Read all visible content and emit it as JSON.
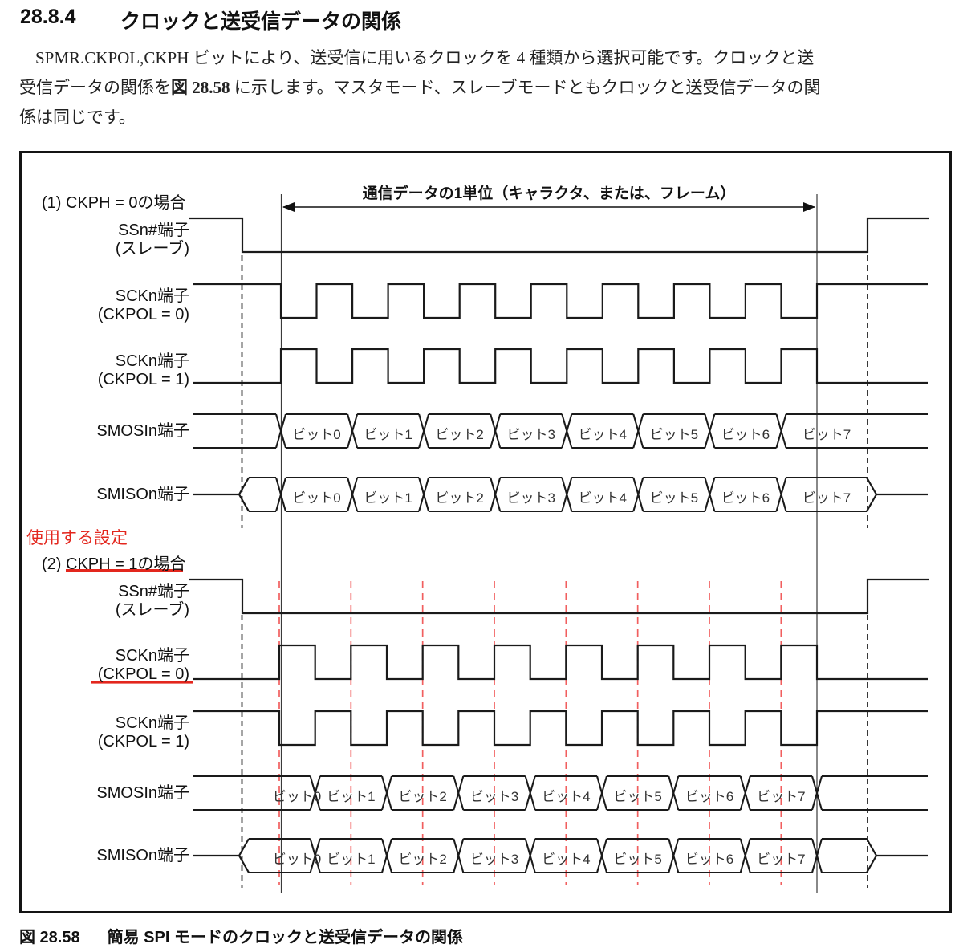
{
  "heading": {
    "number": "28.8.4",
    "title": "クロックと送受信データの関係"
  },
  "paragraph": {
    "line1": "SPMR.CKPOL,CKPH ビットにより、送受信に用いるクロックを 4 種類から選択可能です。クロックと送",
    "line2_pre": "受信データの関係を",
    "line2_bold": "図 28.58",
    "line2_post": " に示します。マスタモード、スレーブモードともクロックと送受信データの関",
    "line3": "係は同じです。"
  },
  "figure": {
    "frame_label": "通信データの1単位（キャラクタ、または、フレーム）",
    "note_red": "使用する設定",
    "sections": [
      {
        "title": "(1) CKPH = 0の場合",
        "signals": [
          {
            "label": "SSn#端子",
            "sub": "(スレーブ)"
          },
          {
            "label": "SCKn端子",
            "sub": "(CKPOL = 0)"
          },
          {
            "label": "SCKn端子",
            "sub": "(CKPOL = 1)"
          },
          {
            "label": "SMOSIn端子",
            "sub": ""
          },
          {
            "label": "SMISOn端子",
            "sub": ""
          }
        ]
      },
      {
        "title": "(2) CKPH = 1の場合",
        "signals": [
          {
            "label": "SSn#端子",
            "sub": "(スレーブ)"
          },
          {
            "label": "SCKn端子",
            "sub": "(CKPOL = 0)"
          },
          {
            "label": "SCKn端子",
            "sub": "(CKPOL = 1)"
          },
          {
            "label": "SMOSIn端子",
            "sub": ""
          },
          {
            "label": "SMISOn端子",
            "sub": ""
          }
        ]
      }
    ],
    "bit_labels": [
      "ビット0",
      "ビット1",
      "ビット2",
      "ビット3",
      "ビット4",
      "ビット5",
      "ビット6",
      "ビット7"
    ],
    "colors": {
      "red": "#e3261d",
      "red_dash": "#f15f5f",
      "line": "#1a1a1a"
    }
  },
  "caption": {
    "number": "図 28.58",
    "title": "簡易 SPI モードのクロックと送受信データの関係"
  }
}
